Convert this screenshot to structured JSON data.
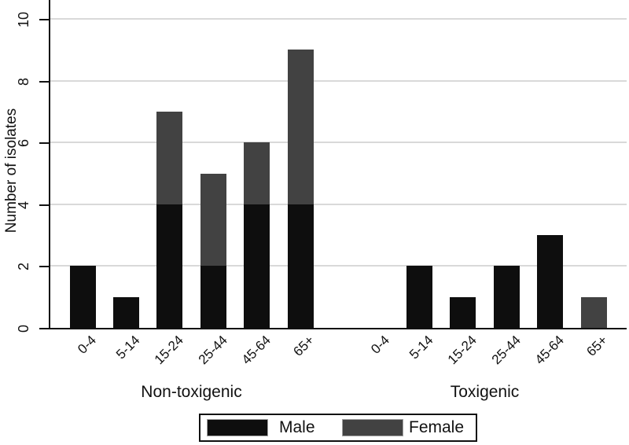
{
  "figure": {
    "background": "#ffffff"
  },
  "chart_data": {
    "type": "bar",
    "stacked": true,
    "title": "",
    "ylabel": "Number of isolates",
    "xlabel": "",
    "ylim": [
      0,
      10
    ],
    "yticks": [
      0,
      2,
      4,
      6,
      8,
      10
    ],
    "grid": "horizontal",
    "categories": [
      "0-4",
      "5-14",
      "15-24",
      "25-44",
      "45-64",
      "65+"
    ],
    "groups": [
      {
        "label": "Non-toxigenic",
        "series": [
          {
            "name": "Male",
            "values": [
              2,
              1,
              4,
              2,
              4,
              4
            ]
          },
          {
            "name": "Female",
            "values": [
              0,
              0,
              3,
              3,
              2,
              5
            ]
          }
        ]
      },
      {
        "label": "Toxigenic",
        "series": [
          {
            "name": "Male",
            "values": [
              0,
              2,
              1,
              2,
              3,
              0
            ]
          },
          {
            "name": "Female",
            "values": [
              0,
              0,
              0,
              0,
              0,
              1
            ]
          }
        ]
      }
    ],
    "legend": {
      "position": "bottom",
      "entries": [
        {
          "label": "Male",
          "color": "#0e0e0e"
        },
        {
          "label": "Female",
          "color": "#424242"
        }
      ]
    },
    "colors": {
      "male": "#0e0e0e",
      "female": "#424242",
      "gridline": "#d9d9d9",
      "axis": "#111111"
    }
  }
}
